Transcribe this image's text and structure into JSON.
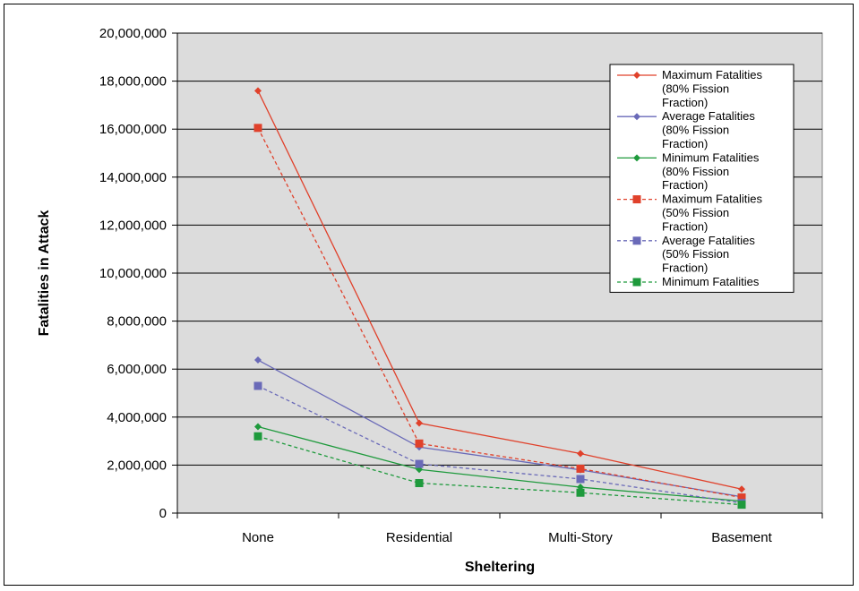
{
  "chart_data": {
    "type": "line",
    "title": "",
    "xlabel": "Sheltering",
    "ylabel": "Fatalities in Attack",
    "categories": [
      "None",
      "Residential",
      "Multi-Story",
      "Basement"
    ],
    "ylim": [
      0,
      20000000
    ],
    "yticks": [
      0,
      2000000,
      4000000,
      6000000,
      8000000,
      10000000,
      12000000,
      14000000,
      16000000,
      18000000,
      20000000
    ],
    "ytick_labels": [
      "0",
      "2,000,000",
      "4,000,000",
      "6,000,000",
      "8,000,000",
      "10,000,000",
      "12,000,000",
      "14,000,000",
      "16,000,000",
      "18,000,000",
      "20,000,000"
    ],
    "grid": true,
    "legend_position": "top-right",
    "series": [
      {
        "name": "Maximum Fatalities (80% Fission Fraction)",
        "legend_lines": [
          "Maximum Fatalities",
          "(80% Fission",
          "Fraction)"
        ],
        "values": [
          17600000,
          3750000,
          2480000,
          1000000
        ],
        "color": "#E0412B",
        "marker": "diamond",
        "dash": "solid"
      },
      {
        "name": "Average Fatalities (80% Fission Fraction)",
        "legend_lines": [
          "Average Fatalities",
          "(80% Fission",
          "Fraction)"
        ],
        "values": [
          6380000,
          2750000,
          1800000,
          680000
        ],
        "color": "#6A6AB8",
        "marker": "diamond",
        "dash": "solid"
      },
      {
        "name": "Minimum Fatalities (80% Fission Fraction)",
        "legend_lines": [
          "Minimum Fatalities",
          "(80% Fission",
          "Fraction)"
        ],
        "values": [
          3600000,
          1820000,
          1080000,
          500000
        ],
        "color": "#1E9A3C",
        "marker": "diamond",
        "dash": "solid"
      },
      {
        "name": "Maximum Fatalities (50% Fission Fraction)",
        "legend_lines": [
          "Maximum Fatalities",
          "(50% Fission",
          "Fraction)"
        ],
        "values": [
          16050000,
          2900000,
          1850000,
          650000
        ],
        "color": "#E0412B",
        "marker": "square",
        "dash": "dashed"
      },
      {
        "name": "Average Fatalities (50% Fission Fraction)",
        "legend_lines": [
          "Average Fatalities",
          "(50% Fission",
          "Fraction)"
        ],
        "values": [
          5300000,
          2050000,
          1420000,
          420000
        ],
        "color": "#6A6AB8",
        "marker": "square",
        "dash": "dashed"
      },
      {
        "name": "Minimum Fatalities",
        "legend_lines": [
          "Minimum Fatalities"
        ],
        "values": [
          3200000,
          1250000,
          850000,
          350000
        ],
        "color": "#1E9A3C",
        "marker": "square",
        "dash": "dashed"
      }
    ]
  }
}
